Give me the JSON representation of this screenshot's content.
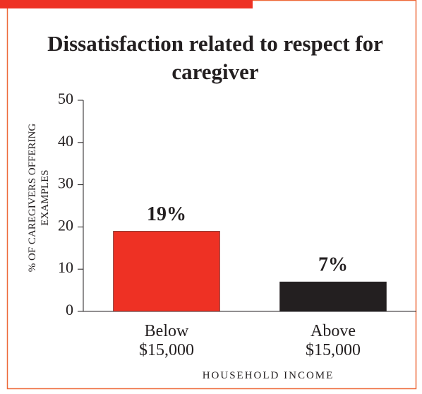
{
  "chart_data": {
    "type": "bar",
    "title": "Dissatisfaction related to respect for caregiver",
    "categories": [
      "Below $15,000",
      "Above $15,000"
    ],
    "values": [
      19,
      7
    ],
    "value_labels": [
      "19%",
      "7%"
    ],
    "colors": [
      "#ee3124",
      "#231f20"
    ],
    "xlabel": "HOUSEHOLD INCOME",
    "ylabel": "% OF CAREGIVERS OFFERING EXAMPLES",
    "ylim": [
      0,
      50
    ],
    "yticks": [
      0,
      10,
      20,
      30,
      40,
      50
    ],
    "grid": false
  }
}
